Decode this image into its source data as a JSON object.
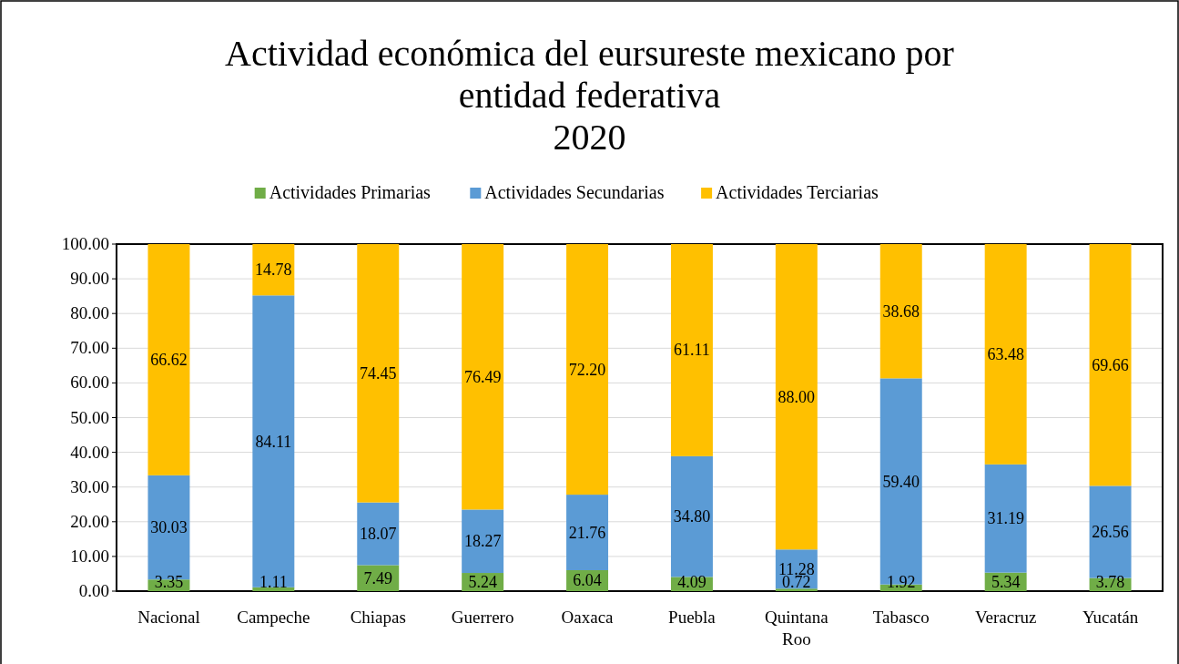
{
  "chart_data": {
    "type": "bar",
    "stacked": true,
    "title": "Actividad económica del eursureste mexicano  por entidad federativa",
    "subtitle": "2020",
    "categories": [
      "Nacional",
      "Campeche",
      "Chiapas",
      "Guerrero",
      "Oaxaca",
      "Puebla",
      "Quintana Roo",
      "Tabasco",
      "Veracruz",
      "Yucatán"
    ],
    "series": [
      {
        "name": "Actividades Primarias",
        "color": "#70ad47",
        "values": [
          3.35,
          1.11,
          7.49,
          5.24,
          6.04,
          4.09,
          0.72,
          1.92,
          5.34,
          3.78
        ],
        "value_labels": [
          "3.35",
          "1.11",
          "7.49",
          "5.24",
          "6.04",
          "4.09",
          "0.72",
          "1.92",
          "5.34",
          "3.78"
        ]
      },
      {
        "name": "Actividades Secundarias",
        "color": "#5b9bd5",
        "values": [
          30.03,
          84.11,
          18.07,
          18.27,
          21.76,
          34.8,
          11.28,
          59.4,
          31.19,
          26.56
        ],
        "value_labels": [
          "30.03",
          "84.11",
          "18.07",
          "18.27",
          "21.76",
          "34.80",
          "11.28",
          "59.40",
          "31.19",
          "26.56"
        ]
      },
      {
        "name": "Actividades Terciarias",
        "color": "#ffc000",
        "values": [
          66.62,
          14.78,
          74.45,
          76.49,
          72.2,
          61.11,
          88.0,
          38.68,
          63.48,
          69.66
        ],
        "value_labels": [
          "66.62",
          "14.78",
          "74.45",
          "76.49",
          "72.20",
          "61.11",
          "88.00",
          "38.68",
          "63.48",
          "69.66"
        ]
      }
    ],
    "ylim": [
      0,
      100
    ],
    "yticks": [
      {
        "value": 0,
        "label": "0.00"
      },
      {
        "value": 10,
        "label": "10.00"
      },
      {
        "value": 20,
        "label": "20.00"
      },
      {
        "value": 30,
        "label": "30.00"
      },
      {
        "value": 40,
        "label": "40.00"
      },
      {
        "value": 50,
        "label": "50.00"
      },
      {
        "value": 60,
        "label": "60.00"
      },
      {
        "value": 70,
        "label": "70.00"
      },
      {
        "value": 80,
        "label": "80.00"
      },
      {
        "value": 90,
        "label": "90.00"
      },
      {
        "value": 100,
        "label": "100.00"
      }
    ],
    "grid": "y",
    "legend": "top"
  }
}
